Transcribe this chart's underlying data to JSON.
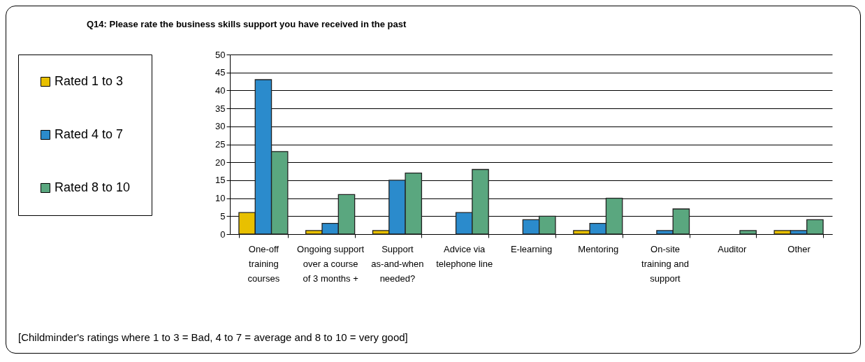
{
  "chart_data": {
    "type": "bar",
    "title": "Q14: Please rate the business skills support you have received in the past",
    "categories": [
      "One-off training courses",
      "Ongoing support over a course of 3 months +",
      "Support as-and-when needed?",
      "Advice via telephone line",
      "E-learning",
      "Mentoring",
      "On-site training and support",
      "Auditor",
      "Other"
    ],
    "series": [
      {
        "name": "Rated 1 to 3",
        "color": "#e8c000",
        "values": [
          6,
          1,
          1,
          0,
          0,
          1,
          0,
          0,
          1
        ]
      },
      {
        "name": "Rated 4 to 7",
        "color": "#2b8bcc",
        "values": [
          43,
          3,
          15,
          6,
          4,
          3,
          1,
          0,
          1
        ]
      },
      {
        "name": "Rated 8 to 10",
        "color": "#5aa77f",
        "values": [
          23,
          11,
          17,
          18,
          5,
          10,
          7,
          1,
          4
        ]
      }
    ],
    "ylim": [
      0,
      50
    ],
    "yticks": [
      0,
      5,
      10,
      15,
      20,
      25,
      30,
      35,
      40,
      45,
      50
    ],
    "grid": "y",
    "legend": "left",
    "annotations": [
      "[Childminder's ratings where 1 to 3 = Bad, 4 to 7 = average and 8 to 10 = very good]"
    ]
  }
}
